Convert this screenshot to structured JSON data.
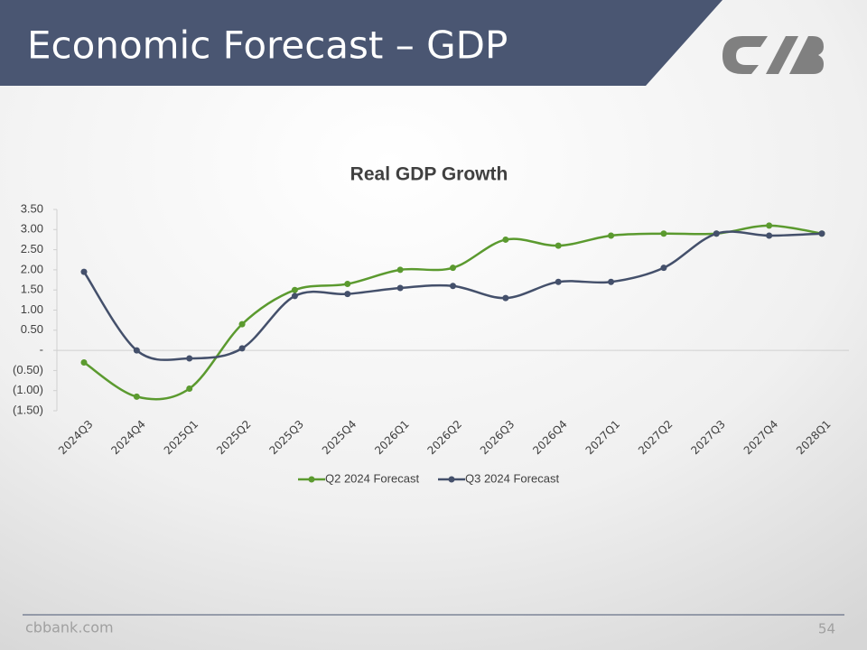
{
  "slide": {
    "title": "Economic Forecast – GDP",
    "footer": "cbbank.com",
    "page_number": "54"
  },
  "chart_data": {
    "type": "line",
    "title": "Real GDP Growth",
    "categories": [
      "2024Q3",
      "2024Q4",
      "2025Q1",
      "2025Q2",
      "2025Q3",
      "2025Q4",
      "2026Q1",
      "2026Q2",
      "2026Q3",
      "2026Q4",
      "2027Q1",
      "2027Q2",
      "2027Q3",
      "2027Q4",
      "2028Q1"
    ],
    "series": [
      {
        "name": "Q2 2024 Forecast",
        "color": "#5b9a2f",
        "values": [
          -0.3,
          -1.15,
          -0.95,
          0.65,
          1.5,
          1.65,
          2.0,
          2.05,
          2.75,
          2.6,
          2.85,
          2.9,
          2.9,
          3.1,
          2.9
        ]
      },
      {
        "name": "Q3 2024 Forecast",
        "color": "#44506b",
        "values": [
          1.95,
          0,
          -0.2,
          0.05,
          1.35,
          1.4,
          1.55,
          1.6,
          1.3,
          1.7,
          1.7,
          2.05,
          2.9,
          2.85,
          2.9
        ]
      }
    ],
    "ylim": [
      -1.5,
      3.5
    ],
    "yticks": [
      {
        "value": -1.5,
        "label": "(1.50)"
      },
      {
        "value": -1,
        "label": "(1.00)"
      },
      {
        "value": -0.5,
        "label": "(0.50)"
      },
      {
        "value": 0,
        "label": "-"
      },
      {
        "value": 0.5,
        "label": "0.50"
      },
      {
        "value": 1,
        "label": "1.00"
      },
      {
        "value": 1.5,
        "label": "1.50"
      },
      {
        "value": 2,
        "label": "2.00"
      },
      {
        "value": 2.5,
        "label": "2.50"
      },
      {
        "value": 3,
        "label": "3.00"
      },
      {
        "value": 3.5,
        "label": "3.50"
      }
    ],
    "grid": false,
    "smooth": true,
    "legend": "bottom"
  }
}
